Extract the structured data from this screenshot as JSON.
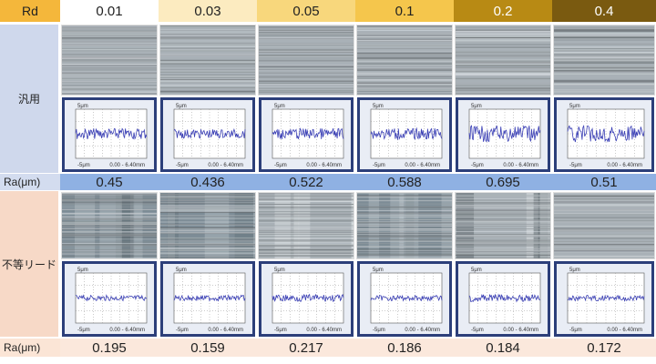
{
  "header": {
    "label": "Rd",
    "rd_values": [
      "0.01",
      "0.03",
      "0.05",
      "0.1",
      "0.2",
      "0.4"
    ],
    "colors": [
      "#ffffff",
      "#fcebc0",
      "#f8d77c",
      "#f5c64c",
      "#b88a14",
      "#7a5a10"
    ]
  },
  "rows": {
    "general_label": "汎用",
    "unequal_label": "不等リード"
  },
  "ra": {
    "label": "Ra(μm)",
    "general_values": [
      "0.45",
      "0.436",
      "0.522",
      "0.588",
      "0.695",
      "0.51"
    ],
    "unequal_values": [
      "0.195",
      "0.159",
      "0.217",
      "0.186",
      "0.184",
      "0.172"
    ]
  },
  "plot_text": {
    "top_label": "5μm",
    "bottom_left": "-5μm",
    "bottom_right": "0.00 - 6.40mm"
  },
  "photo_kinds": {
    "general": [
      "fine",
      "fine",
      "fine",
      "fine",
      "coarse",
      "coarse"
    ],
    "unequal": [
      "smooth",
      "smooth",
      "wavy",
      "smooth",
      "wavy",
      "fine"
    ]
  }
}
